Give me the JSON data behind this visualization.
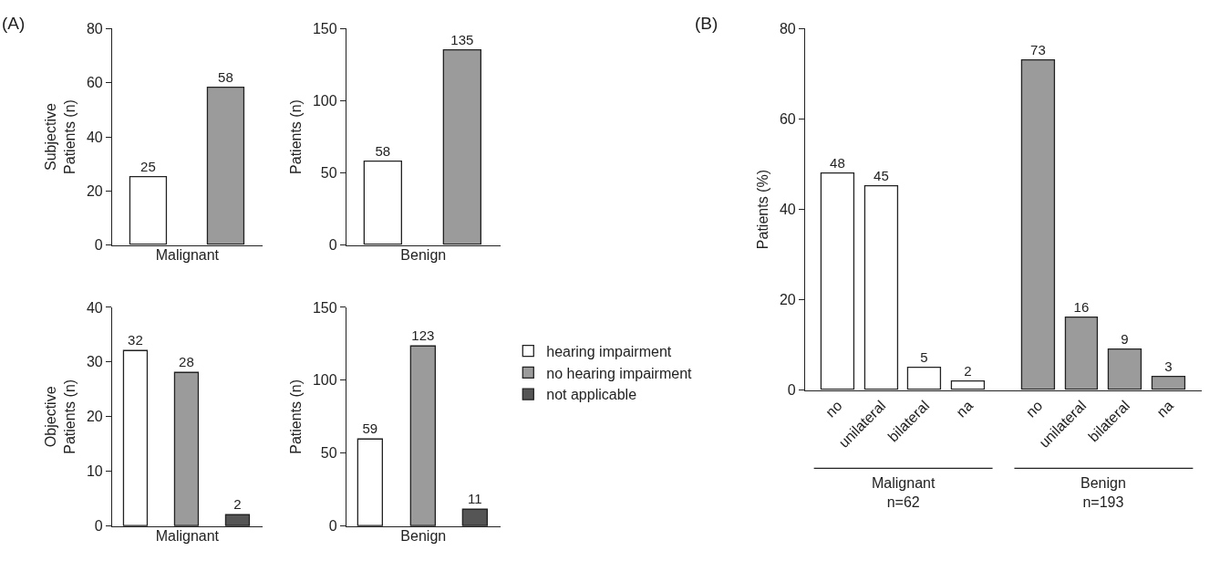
{
  "chart_data": [
    {
      "type": "bar",
      "categories": [
        null,
        null
      ],
      "xlabel": "Malignant",
      "ylabel": "Subjective\nPatients (n)",
      "ylim": [
        0,
        80
      ],
      "yticks": [
        0,
        20,
        40,
        60,
        80
      ],
      "tick_labels": "y",
      "data_labels": true,
      "annotations": [
        "(A)"
      ],
      "series": [
        {
          "color": "#ffffff",
          "values": [
            25,
            null
          ]
        },
        {
          "color": "#9b9b9b",
          "values": [
            null,
            58
          ]
        }
      ]
    },
    {
      "type": "bar",
      "categories": [
        null,
        null
      ],
      "xlabel": "Benign",
      "ylabel": "Patients (n)",
      "ylim": [
        0,
        150
      ],
      "yticks": [
        0,
        50,
        100,
        150
      ],
      "tick_labels": "y",
      "data_labels": true,
      "series": [
        {
          "color": "#ffffff",
          "values": [
            58,
            null
          ]
        },
        {
          "color": "#9b9b9b",
          "values": [
            null,
            135
          ]
        }
      ]
    },
    {
      "type": "bar",
      "categories": [
        null,
        null,
        null
      ],
      "xlabel": "Malignant",
      "ylabel": "Objective\nPatients (n)",
      "ylim": [
        0,
        40
      ],
      "yticks": [
        0,
        10,
        20,
        30,
        40
      ],
      "tick_labels": "y",
      "data_labels": true,
      "series": [
        {
          "color": "#ffffff",
          "values": [
            32,
            null,
            null
          ]
        },
        {
          "color": "#9b9b9b",
          "values": [
            null,
            28,
            null
          ]
        },
        {
          "color": "#555555",
          "values": [
            null,
            null,
            2
          ]
        }
      ]
    },
    {
      "type": "bar",
      "categories": [
        null,
        null,
        null
      ],
      "xlabel": "Benign",
      "ylabel": "Patients (n)",
      "ylim": [
        0,
        150
      ],
      "yticks": [
        0,
        50,
        100,
        150
      ],
      "tick_labels": "y",
      "data_labels": true,
      "legend": "right",
      "series": [
        {
          "name": "hearing impairment",
          "color": "#ffffff",
          "values": [
            59,
            null,
            null
          ]
        },
        {
          "name": "no hearing impairment",
          "color": "#9b9b9b",
          "values": [
            null,
            123,
            null
          ]
        },
        {
          "name": "not applicable",
          "color": "#555555",
          "values": [
            null,
            null,
            11
          ]
        }
      ]
    },
    {
      "type": "bar",
      "categories": [
        "no",
        "unilateral",
        "bilateral",
        "na",
        "no",
        "unilateral",
        "bilateral",
        "na"
      ],
      "ylabel": "Patients (%)",
      "ylim": [
        0,
        80
      ],
      "yticks": [
        0,
        20,
        40,
        60,
        80
      ],
      "data_labels": true,
      "annotations": [
        "(B)",
        "Malignant\nn=62",
        "Benign\nn=193"
      ],
      "series": [
        {
          "color": "#ffffff",
          "values": [
            48,
            45,
            5,
            2,
            null,
            null,
            null,
            null
          ]
        },
        {
          "color": "#9b9b9b",
          "values": [
            null,
            null,
            null,
            null,
            73,
            16,
            9,
            3
          ]
        }
      ]
    }
  ]
}
